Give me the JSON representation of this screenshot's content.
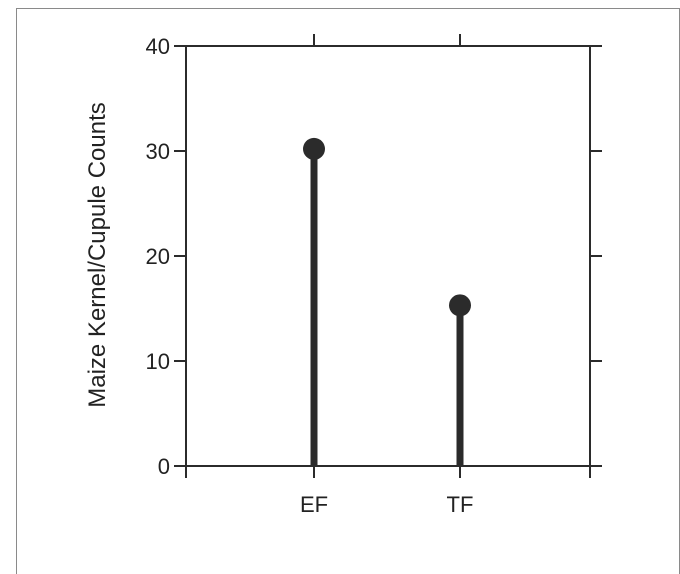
{
  "chart_data": {
    "type": "lollipop",
    "categories": [
      "EF",
      "TF"
    ],
    "values": [
      30.2,
      15.3
    ],
    "title": "",
    "xlabel": "",
    "ylabel": "Maize Kernel/Cupule Counts",
    "ylim": [
      0,
      40
    ],
    "yticks": [
      0,
      10,
      20,
      30,
      40
    ],
    "grid": false,
    "legend": "none",
    "colors": {
      "mark": "#2b2b2b",
      "axis": "#2b2b2b"
    }
  }
}
